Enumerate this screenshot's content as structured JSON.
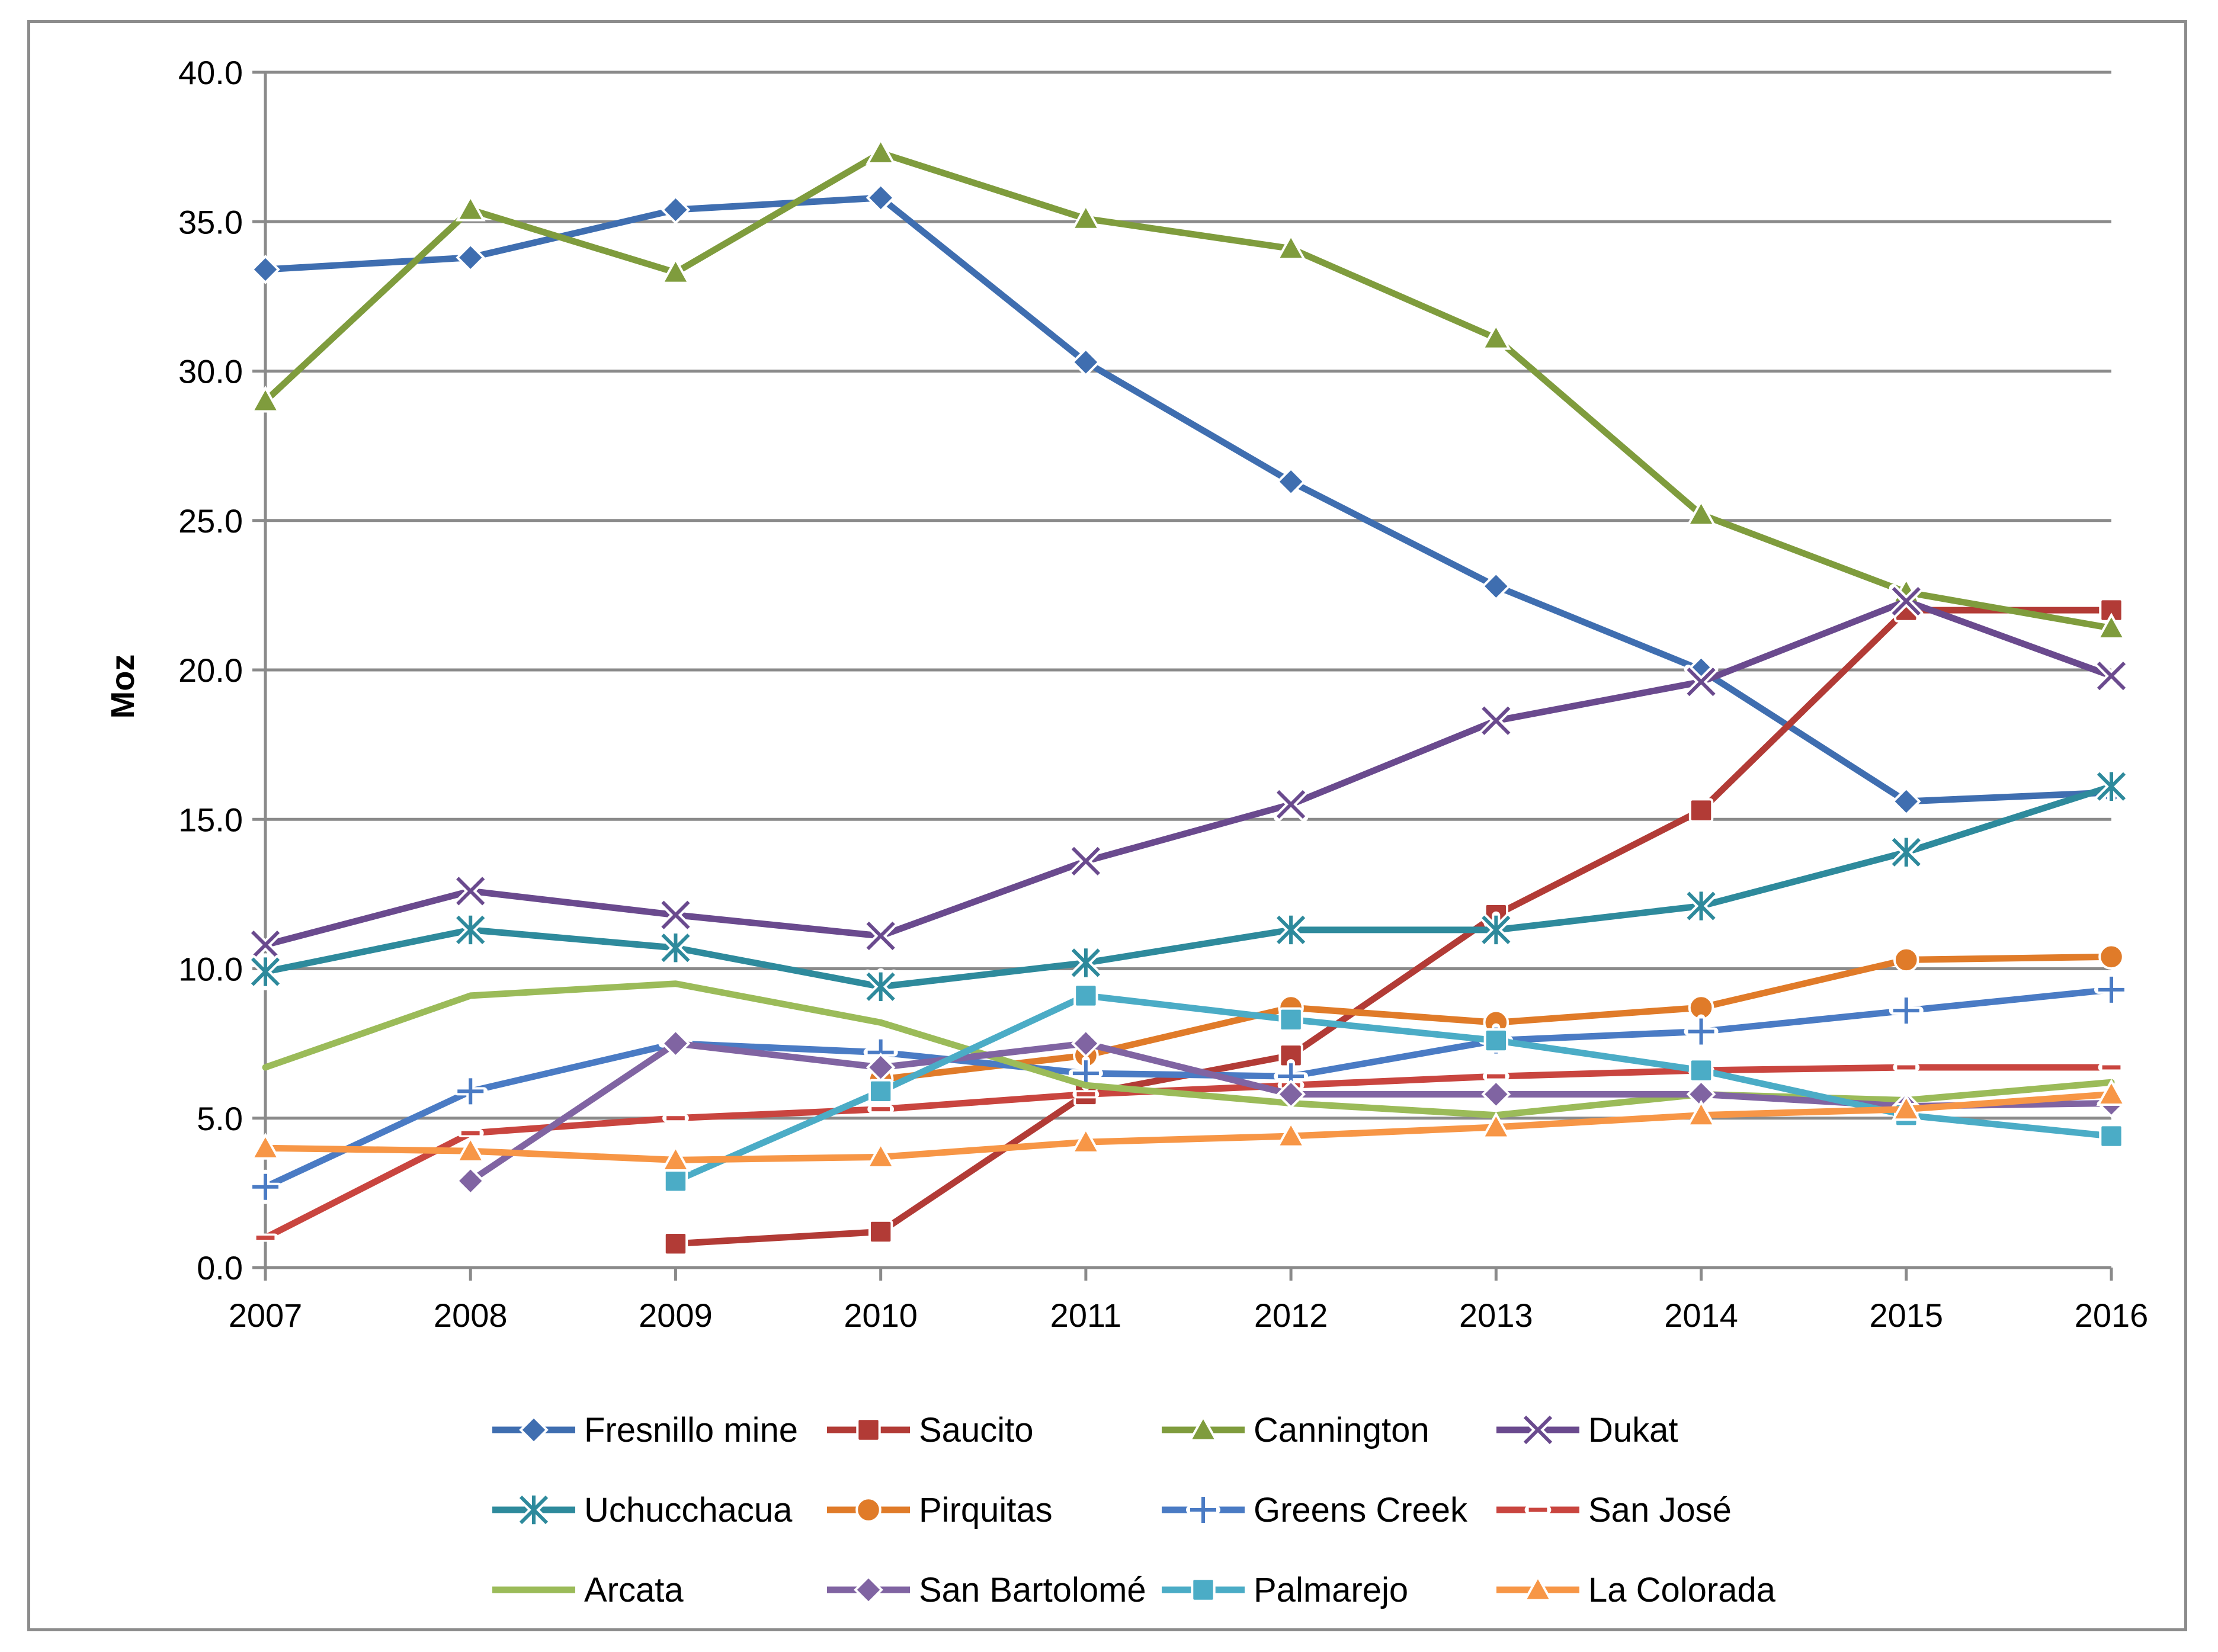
{
  "chart_data": {
    "type": "line",
    "title": "",
    "xlabel": "",
    "ylabel": "Moz",
    "ylim": [
      0,
      40
    ],
    "yticks": [
      "0.0",
      "5.0",
      "10.0",
      "15.0",
      "20.0",
      "25.0",
      "30.0",
      "35.0",
      "40.0"
    ],
    "grid": true,
    "legend_position": "bottom",
    "categories": [
      "2007",
      "2008",
      "2009",
      "2010",
      "2011",
      "2012",
      "2013",
      "2014",
      "2015",
      "2016"
    ],
    "series": [
      {
        "name": "Fresnillo mine",
        "color": "#3f6eb0",
        "marker": "diamond",
        "values": [
          33.4,
          33.8,
          35.4,
          35.8,
          30.3,
          26.3,
          22.8,
          20.0,
          15.6,
          15.9
        ]
      },
      {
        "name": "Saucito",
        "color": "#b23b36",
        "marker": "square",
        "values": [
          null,
          null,
          0.8,
          1.2,
          5.8,
          7.1,
          11.8,
          15.3,
          22.0,
          22.0
        ]
      },
      {
        "name": "Cannington",
        "color": "#7f9c3d",
        "marker": "triangle",
        "values": [
          29.0,
          35.4,
          33.3,
          37.3,
          35.1,
          34.1,
          31.1,
          25.2,
          22.6,
          21.4
        ]
      },
      {
        "name": "Dukat",
        "color": "#6a4a8e",
        "marker": "x",
        "values": [
          10.8,
          12.6,
          11.8,
          11.1,
          13.6,
          15.5,
          18.3,
          19.6,
          22.3,
          19.8
        ]
      },
      {
        "name": "Uchucchacua",
        "color": "#2e8a9c",
        "marker": "asterisk",
        "values": [
          9.9,
          11.3,
          10.7,
          9.4,
          10.2,
          11.3,
          11.3,
          12.1,
          13.9,
          16.1
        ]
      },
      {
        "name": "Pirquitas",
        "color": "#e07b29",
        "marker": "circle",
        "values": [
          null,
          null,
          null,
          6.3,
          7.1,
          8.7,
          8.2,
          8.7,
          10.3,
          10.4
        ]
      },
      {
        "name": "Greens Creek",
        "color": "#4a7bc4",
        "marker": "plus",
        "values": [
          2.7,
          5.9,
          7.5,
          7.2,
          6.5,
          6.4,
          7.6,
          7.9,
          8.6,
          9.3
        ]
      },
      {
        "name": "San José",
        "color": "#c9453f",
        "marker": "dash",
        "values": [
          1.0,
          4.5,
          5.0,
          5.3,
          5.8,
          6.1,
          6.4,
          6.6,
          6.7,
          6.7
        ]
      },
      {
        "name": "Arcata",
        "color": "#9bbb59",
        "marker": "none",
        "values": [
          6.7,
          9.1,
          9.5,
          8.2,
          6.1,
          5.5,
          5.1,
          5.8,
          5.6,
          6.2
        ]
      },
      {
        "name": "San Bartolomé",
        "color": "#8064a2",
        "marker": "diamond",
        "values": [
          null,
          2.9,
          7.5,
          6.7,
          7.5,
          5.8,
          5.8,
          5.8,
          5.4,
          5.5
        ]
      },
      {
        "name": "Palmarejo",
        "color": "#4bacc6",
        "marker": "square",
        "values": [
          null,
          null,
          2.9,
          5.9,
          9.1,
          8.3,
          7.6,
          6.6,
          5.1,
          4.4
        ]
      },
      {
        "name": "La Colorada",
        "color": "#f79646",
        "marker": "triangle",
        "values": [
          4.0,
          3.9,
          3.6,
          3.7,
          4.2,
          4.4,
          4.7,
          5.1,
          5.3,
          5.8
        ]
      }
    ]
  }
}
